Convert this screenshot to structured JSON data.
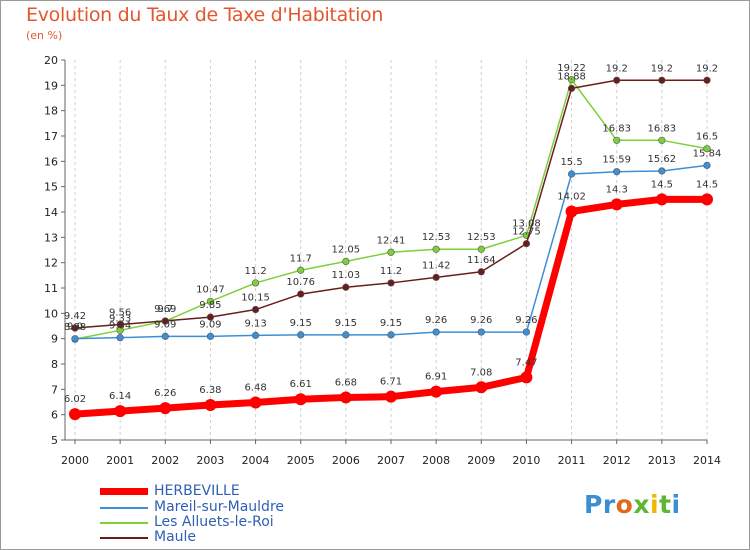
{
  "chart_data": {
    "type": "line",
    "title": "Evolution du Taux de Taxe d'Habitation",
    "unit_label": "(en %)",
    "x": [
      "2000",
      "2001",
      "2002",
      "2003",
      "2004",
      "2005",
      "2006",
      "2007",
      "2008",
      "2009",
      "2010",
      "2011",
      "2012",
      "2013",
      "2014"
    ],
    "ylim": [
      5,
      20
    ],
    "yticks": [
      5,
      6,
      7,
      8,
      9,
      10,
      11,
      12,
      13,
      14,
      15,
      16,
      17,
      18,
      19,
      20
    ],
    "grid": "vertical-dashed",
    "legend": "bottom-left",
    "series": [
      {
        "name": "HERBEVILLE",
        "color": "#ff0000",
        "values": [
          6.02,
          6.14,
          6.26,
          6.38,
          6.48,
          6.61,
          6.68,
          6.71,
          6.91,
          7.08,
          7.47,
          14.02,
          14.3,
          14.5,
          14.5
        ],
        "labels": [
          "6.02",
          "6.14",
          "6.26",
          "6.38",
          "6.48",
          "6.61",
          "6.68",
          "6.71",
          "6.91",
          "7.08",
          "7.47",
          "14.02",
          "14.3",
          "14.5",
          "14.5"
        ]
      },
      {
        "name": "Mareil-sur-Mauldre",
        "color": "#3d8fd6",
        "values": [
          9.0,
          9.04,
          9.09,
          9.09,
          9.13,
          9.15,
          9.15,
          9.15,
          9.26,
          9.26,
          9.26,
          15.5,
          15.59,
          15.62,
          15.84
        ],
        "labels": [
          "9.0",
          "9.04",
          "9.09",
          "9.09",
          "9.13",
          "9.15",
          "9.15",
          "9.15",
          "9.26",
          "9.26",
          "9.26",
          "15.5",
          "15.59",
          "15.62",
          "15.84"
        ]
      },
      {
        "name": "Les Alluets-le-Roi",
        "color": "#7ed03a",
        "values": [
          8.98,
          9.33,
          9.69,
          10.47,
          11.2,
          11.7,
          12.05,
          12.41,
          12.53,
          12.53,
          13.08,
          19.22,
          16.83,
          16.83,
          16.5
        ],
        "labels": [
          "8.98",
          "9.33",
          "9.69",
          "10.47",
          "11.2",
          "11.7",
          "12.05",
          "12.41",
          "12.53",
          "12.53",
          "13.08",
          "19.22",
          "16.83",
          "16.83",
          "16.5"
        ]
      },
      {
        "name": "Maule",
        "color": "#6b1d1d",
        "values": [
          9.42,
          9.56,
          9.7,
          9.85,
          10.15,
          10.76,
          11.03,
          11.2,
          11.42,
          11.64,
          12.75,
          18.88,
          19.2,
          19.2,
          19.2
        ],
        "labels": [
          "9.42",
          "9.56",
          "9.7",
          "9.85",
          "10.15",
          "10.76",
          "11.03",
          "11.2",
          "11.42",
          "11.64",
          "12.75",
          "18.88",
          "19.2",
          "19.2",
          "19.2"
        ]
      }
    ]
  },
  "logo": {
    "text": "Proxiti"
  }
}
